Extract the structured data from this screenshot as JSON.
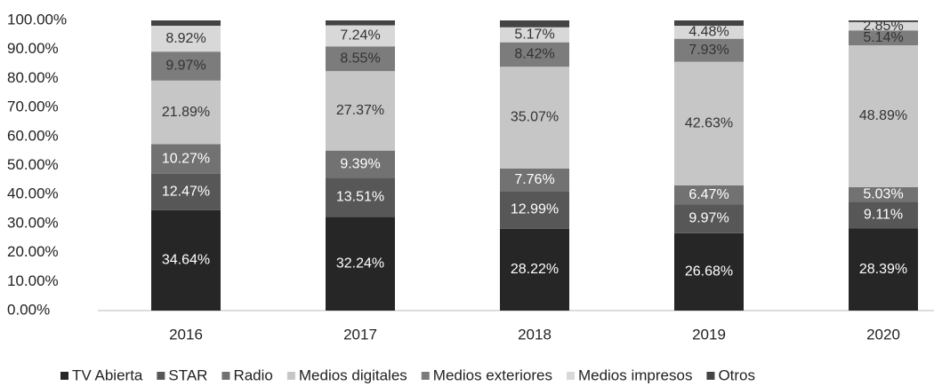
{
  "chart_data": {
    "type": "stacked_bar",
    "categories": [
      "2016",
      "2017",
      "2018",
      "2019",
      "2020"
    ],
    "ylim": [
      0,
      100
    ],
    "yticks": [
      {
        "value": 0,
        "label": "0.00%"
      },
      {
        "value": 10,
        "label": "10.00%"
      },
      {
        "value": 20,
        "label": "20.00%"
      },
      {
        "value": 30,
        "label": "30.00%"
      },
      {
        "value": 40,
        "label": "40.00%"
      },
      {
        "value": 50,
        "label": "50.00%"
      },
      {
        "value": 60,
        "label": "60.00%"
      },
      {
        "value": 70,
        "label": "70.00%"
      },
      {
        "value": 80,
        "label": "80.00%"
      },
      {
        "value": 90,
        "label": "90.00%"
      },
      {
        "value": 100,
        "label": "100.00%"
      }
    ],
    "legend": "bottom",
    "series": [
      {
        "name": "TV Abierta",
        "color": "#262626",
        "values": [
          34.64,
          32.24,
          28.22,
          26.68,
          28.39
        ],
        "value_labels": [
          "34.64%",
          "32.24%",
          "28.22%",
          "26.68%",
          "28.39%"
        ]
      },
      {
        "name": "STAR",
        "color": "#575757",
        "values": [
          12.47,
          13.51,
          12.99,
          9.97,
          9.11
        ],
        "value_labels": [
          "12.47%",
          "13.51%",
          "12.99%",
          "9.97%",
          "9.11%"
        ]
      },
      {
        "name": "Radio",
        "color": "#727272",
        "values": [
          10.27,
          9.39,
          7.76,
          6.47,
          5.03
        ],
        "value_labels": [
          "10.27%",
          "9.39%",
          "7.76%",
          "6.47%",
          "5.03%"
        ]
      },
      {
        "name": "Medios digitales",
        "color": "#c6c6c6",
        "values": [
          21.89,
          27.37,
          35.07,
          42.63,
          48.89
        ],
        "value_labels": [
          "21.89%",
          "27.37%",
          "35.07%",
          "42.63%",
          "48.89%"
        ]
      },
      {
        "name": "Medios exteriores",
        "color": "#7c7c7c",
        "values": [
          9.97,
          8.55,
          8.42,
          7.93,
          5.14
        ],
        "value_labels": [
          "9.97%",
          "8.55%",
          "8.42%",
          "7.93%",
          "5.14%"
        ]
      },
      {
        "name": "Medios impresos",
        "color": "#d8d8d8",
        "values": [
          8.92,
          7.24,
          5.17,
          4.48,
          2.85
        ],
        "value_labels": [
          "8.92%",
          "7.24%",
          "5.17%",
          "4.48%",
          "2.85%"
        ]
      },
      {
        "name": "Otros",
        "color": "#444444",
        "values": [
          1.84,
          1.7,
          2.37,
          1.84,
          0.59
        ]
      }
    ]
  }
}
